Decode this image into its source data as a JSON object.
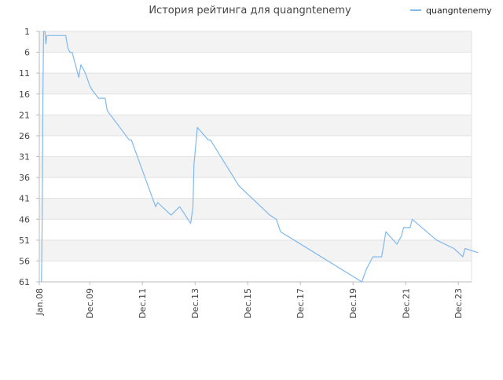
{
  "chart_data": {
    "type": "line",
    "title": "История рейтинга для quangntenemy",
    "xlabel": "",
    "ylabel": "",
    "y_axis": {
      "inverted": true,
      "ylim": [
        1,
        61
      ],
      "ticks": [
        1,
        6,
        11,
        16,
        21,
        26,
        31,
        36,
        41,
        46,
        51,
        56,
        61
      ]
    },
    "x_axis": {
      "range": [
        "2008-01-01",
        "2024-06-01"
      ],
      "ticks": [
        {
          "label": "Jan.08",
          "date": "2008-01-01"
        },
        {
          "label": "Dec.09",
          "date": "2009-12-01"
        },
        {
          "label": "Dec.11",
          "date": "2011-12-01"
        },
        {
          "label": "Dec.13",
          "date": "2013-12-01"
        },
        {
          "label": "Dec.15",
          "date": "2015-12-01"
        },
        {
          "label": "Dec.17",
          "date": "2017-12-01"
        },
        {
          "label": "Dec.19",
          "date": "2019-12-01"
        },
        {
          "label": "Dec.21",
          "date": "2021-12-01"
        },
        {
          "label": "Dec.23",
          "date": "2023-12-01"
        }
      ]
    },
    "grid": "horizontal bands",
    "legend": {
      "placement": "top-right",
      "entries": [
        "quangntenemy"
      ]
    },
    "series": [
      {
        "name": "quangntenemy",
        "color": "#7fb9ee",
        "points": [
          [
            "2008-02-01",
            61
          ],
          [
            "2008-02-10",
            46
          ],
          [
            "2008-02-20",
            16
          ],
          [
            "2008-03-01",
            1
          ],
          [
            "2008-03-20",
            1
          ],
          [
            "2008-04-01",
            4
          ],
          [
            "2008-04-15",
            2
          ],
          [
            "2008-05-01",
            2
          ],
          [
            "2008-07-01",
            2
          ],
          [
            "2009-01-01",
            2
          ],
          [
            "2009-02-01",
            5
          ],
          [
            "2009-03-01",
            6
          ],
          [
            "2009-04-01",
            6
          ],
          [
            "2009-05-01",
            8
          ],
          [
            "2009-06-01",
            10
          ],
          [
            "2009-07-01",
            12
          ],
          [
            "2009-08-01",
            9
          ],
          [
            "2009-10-01",
            11
          ],
          [
            "2009-12-01",
            14
          ],
          [
            "2010-01-01",
            15
          ],
          [
            "2010-04-01",
            17
          ],
          [
            "2010-07-01",
            17
          ],
          [
            "2010-08-01",
            20
          ],
          [
            "2011-06-01",
            27
          ],
          [
            "2011-07-01",
            27
          ],
          [
            "2012-06-01",
            43
          ],
          [
            "2012-07-01",
            42
          ],
          [
            "2013-01-01",
            45
          ],
          [
            "2013-05-01",
            43
          ],
          [
            "2013-10-01",
            47
          ],
          [
            "2013-11-01",
            43
          ],
          [
            "2013-11-15",
            33
          ],
          [
            "2014-01-01",
            24
          ],
          [
            "2014-06-01",
            27
          ],
          [
            "2014-07-01",
            27
          ],
          [
            "2015-08-01",
            38
          ],
          [
            "2016-10-01",
            45
          ],
          [
            "2017-01-01",
            46
          ],
          [
            "2017-03-01",
            49
          ],
          [
            "2020-04-01",
            61
          ],
          [
            "2020-06-01",
            58
          ],
          [
            "2020-09-01",
            55
          ],
          [
            "2021-01-01",
            55
          ],
          [
            "2021-03-01",
            49
          ],
          [
            "2021-08-01",
            52
          ],
          [
            "2021-10-01",
            50
          ],
          [
            "2021-11-01",
            48
          ],
          [
            "2022-02-01",
            48
          ],
          [
            "2022-03-01",
            46
          ],
          [
            "2023-02-01",
            51
          ],
          [
            "2023-10-01",
            53
          ],
          [
            "2024-02-01",
            55
          ],
          [
            "2024-03-01",
            53
          ],
          [
            "2024-09-01",
            54
          ]
        ]
      }
    ]
  }
}
